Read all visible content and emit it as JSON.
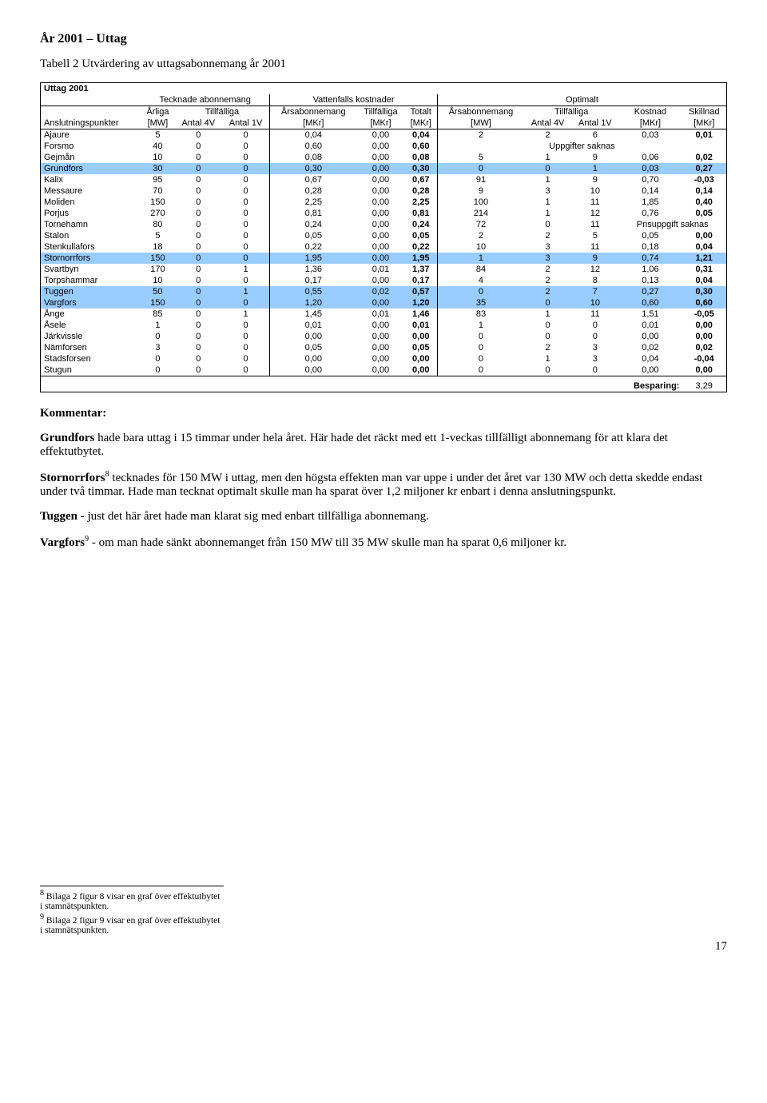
{
  "heading": "År 2001 – Uttag",
  "subheading": "Tabell 2 Utvärdering av uttagsabonnemang år 2001",
  "table": {
    "title": "Uttag 2001",
    "group_headers": {
      "g1": "Tecknade abonnemang",
      "g2": "Vattenfalls kostnader",
      "g3": "Optimalt"
    },
    "sub_headers": {
      "arliga": "Årliga",
      "tillfalliga": "Tillfälliga",
      "arsabon": "Årsabonnemang",
      "tillfalliga2": "Tillfälliga",
      "totalt": "Totalt",
      "arsabon2": "Årsabonnemang",
      "tillfalliga3": "Tillfälliga",
      "kostnad": "Kostnad",
      "skillnad": "Skillnad"
    },
    "unit_headers": {
      "col0": "Anslutningspunkter",
      "mw": "[MW]",
      "a4v": "Antal 4V",
      "a1v": "Antal 1V",
      "mkr": "[MKr]"
    },
    "rows": [
      {
        "hl": false,
        "name": "Ajaure",
        "c": [
          "5",
          "0",
          "0",
          "0,04",
          "0,00",
          "0,04",
          "2",
          "2",
          "6",
          "0,03",
          "0,01"
        ]
      },
      {
        "hl": false,
        "name": "Forsmo",
        "c": [
          "40",
          "0",
          "0",
          "0,60",
          "0,00",
          "0,60"
        ],
        "note": "Uppgifter saknas"
      },
      {
        "hl": false,
        "name": "Gejmån",
        "c": [
          "10",
          "0",
          "0",
          "0,08",
          "0,00",
          "0,08",
          "5",
          "1",
          "9",
          "0,06",
          "0,02"
        ]
      },
      {
        "hl": true,
        "name": "Grundfors",
        "c": [
          "30",
          "0",
          "0",
          "0,30",
          "0,00",
          "0,30",
          "0",
          "0",
          "1",
          "0,03",
          "0,27"
        ]
      },
      {
        "hl": false,
        "name": "Kalix",
        "c": [
          "95",
          "0",
          "0",
          "0,67",
          "0,00",
          "0,67",
          "91",
          "1",
          "9",
          "0,70",
          "-0,03"
        ]
      },
      {
        "hl": false,
        "name": "Messaure",
        "c": [
          "70",
          "0",
          "0",
          "0,28",
          "0,00",
          "0,28",
          "9",
          "3",
          "10",
          "0,14",
          "0,14"
        ]
      },
      {
        "hl": false,
        "name": "Moliden",
        "c": [
          "150",
          "0",
          "0",
          "2,25",
          "0,00",
          "2,25",
          "100",
          "1",
          "11",
          "1,85",
          "0,40"
        ]
      },
      {
        "hl": false,
        "name": "Porjus",
        "c": [
          "270",
          "0",
          "0",
          "0,81",
          "0,00",
          "0,81",
          "214",
          "1",
          "12",
          "0,76",
          "0,05"
        ]
      },
      {
        "hl": false,
        "name": "Tornehamn",
        "c": [
          "80",
          "0",
          "0",
          "0,24",
          "0,00",
          "0,24",
          "72",
          "0",
          "11"
        ],
        "note2": "Prisuppgift saknas"
      },
      {
        "hl": false,
        "name": "Stalon",
        "c": [
          "5",
          "0",
          "0",
          "0,05",
          "0,00",
          "0,05",
          "2",
          "2",
          "5",
          "0,05",
          "0,00"
        ]
      },
      {
        "hl": false,
        "name": "Stenkullafors",
        "c": [
          "18",
          "0",
          "0",
          "0,22",
          "0,00",
          "0,22",
          "10",
          "3",
          "11",
          "0,18",
          "0,04"
        ]
      },
      {
        "hl": true,
        "name": "Stornorrfors",
        "c": [
          "150",
          "0",
          "0",
          "1,95",
          "0,00",
          "1,95",
          "1",
          "3",
          "9",
          "0,74",
          "1,21"
        ]
      },
      {
        "hl": false,
        "name": "Svartbyn",
        "c": [
          "170",
          "0",
          "1",
          "1,36",
          "0,01",
          "1,37",
          "84",
          "2",
          "12",
          "1,06",
          "0,31"
        ]
      },
      {
        "hl": false,
        "name": "Torpshammar",
        "c": [
          "10",
          "0",
          "0",
          "0,17",
          "0,00",
          "0,17",
          "4",
          "2",
          "8",
          "0,13",
          "0,04"
        ]
      },
      {
        "hl": true,
        "name": "Tuggen",
        "c": [
          "50",
          "0",
          "1",
          "0,55",
          "0,02",
          "0,57",
          "0",
          "2",
          "7",
          "0,27",
          "0,30"
        ]
      },
      {
        "hl": true,
        "name": "Vargfors",
        "c": [
          "150",
          "0",
          "0",
          "1,20",
          "0,00",
          "1,20",
          "35",
          "0",
          "10",
          "0,60",
          "0,60"
        ]
      },
      {
        "hl": false,
        "name": "Ånge",
        "c": [
          "85",
          "0",
          "1",
          "1,45",
          "0,01",
          "1,46",
          "83",
          "1",
          "11",
          "1,51",
          "-0,05"
        ]
      },
      {
        "hl": false,
        "name": "Åsele",
        "c": [
          "1",
          "0",
          "0",
          "0,01",
          "0,00",
          "0,01",
          "1",
          "0",
          "0",
          "0,01",
          "0,00"
        ]
      },
      {
        "hl": false,
        "name": "Järkvissle",
        "c": [
          "0",
          "0",
          "0",
          "0,00",
          "0,00",
          "0,00",
          "0",
          "0",
          "0",
          "0,00",
          "0,00"
        ]
      },
      {
        "hl": false,
        "name": "Nämforsen",
        "c": [
          "3",
          "0",
          "0",
          "0,05",
          "0,00",
          "0,05",
          "0",
          "2",
          "3",
          "0,02",
          "0,02"
        ]
      },
      {
        "hl": false,
        "name": "Stadsforsen",
        "c": [
          "0",
          "0",
          "0",
          "0,00",
          "0,00",
          "0,00",
          "0",
          "1",
          "3",
          "0,04",
          "-0,04"
        ]
      },
      {
        "hl": false,
        "name": "Stugun",
        "c": [
          "0",
          "0",
          "0",
          "0,00",
          "0,00",
          "0,00",
          "0",
          "0",
          "0",
          "0,00",
          "0,00"
        ]
      }
    ],
    "besparing_label": "Besparing:",
    "besparing_value": "3,29",
    "highlight_color": "#99ccff"
  },
  "commentary": {
    "title": "Kommentar:",
    "p1a": "Grundfors",
    "p1b": " hade bara uttag i 15 timmar under hela året. Här hade det räckt med ett 1-veckas tillfälligt abonnemang för att klara det effektutbytet.",
    "p2a": "Stornorrfors",
    "p2sup": "8",
    "p2b": " tecknades för 150 MW i uttag, men den högsta effekten man var uppe i under det året var 130 MW och detta skedde endast under två timmar. Hade man tecknat optimalt skulle man ha sparat över 1,2 miljoner kr enbart i denna anslutningspunkt.",
    "p3a": "Tuggen - ",
    "p3b": "just det här året hade man klarat sig med enbart tillfälliga abonnemang.",
    "p4a": "Vargfors",
    "p4sup": "9",
    "p4b": " - om man hade sänkt abonnemanget från 150 MW till 35 MW skulle man ha sparat 0,6 miljoner kr."
  },
  "footnotes": {
    "f8": "Bilaga 2 figur 8 visar en graf över effektutbytet i stamnätspunkten.",
    "f9": "Bilaga 2 figur 9 visar en graf över effektutbytet i stamnätspunkten."
  },
  "page_number": "17"
}
